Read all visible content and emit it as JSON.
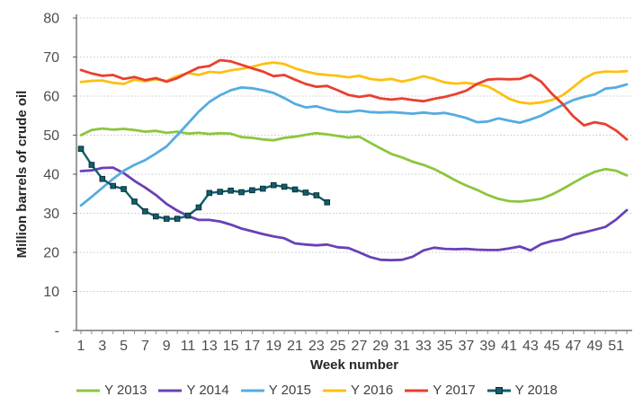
{
  "chart_data": {
    "type": "line",
    "title": "",
    "xlabel": "Week number",
    "ylabel": "Million barrels of crude oil",
    "grid": "horizontal",
    "legend_position": "bottom",
    "xlim": [
      1,
      52
    ],
    "ylim": [
      0,
      80
    ],
    "y_tick_values": [
      0,
      10,
      20,
      30,
      40,
      50,
      60,
      70,
      80
    ],
    "y_tick_labels": [
      "-",
      "10",
      "20",
      "30",
      "40",
      "50",
      "60",
      "70",
      "80"
    ],
    "x_tick_values": [
      1,
      3,
      5,
      7,
      9,
      11,
      13,
      15,
      17,
      19,
      21,
      23,
      25,
      27,
      29,
      31,
      33,
      35,
      37,
      39,
      41,
      43,
      45,
      47,
      49,
      51
    ],
    "x_tick_labels": [
      "1",
      "3",
      "5",
      "7",
      "9",
      "11",
      "13",
      "15",
      "17",
      "19",
      "21",
      "23",
      "25",
      "27",
      "29",
      "31",
      "33",
      "35",
      "37",
      "39",
      "41",
      "43",
      "45",
      "47",
      "49",
      "51"
    ],
    "series": [
      {
        "name": "Y 2013",
        "color": "#8cc63e",
        "marker": "none",
        "values": [
          50.0,
          51.3,
          51.7,
          51.4,
          51.6,
          51.3,
          50.9,
          51.1,
          50.6,
          50.9,
          50.4,
          50.6,
          50.3,
          50.5,
          50.4,
          49.5,
          49.3,
          48.9,
          48.7,
          49.3,
          49.6,
          50.1,
          50.5,
          50.2,
          49.8,
          49.4,
          49.6,
          48.1,
          46.6,
          45.2,
          44.3,
          43.2,
          42.4,
          41.3,
          39.9,
          38.4,
          37.1,
          36.0,
          34.7,
          33.7,
          33.1,
          33.0,
          33.3,
          33.7,
          34.8,
          36.2,
          37.8,
          39.3,
          40.6,
          41.3,
          40.9,
          39.7
        ]
      },
      {
        "name": "Y 2014",
        "color": "#6a40b8",
        "marker": "none",
        "values": [
          40.8,
          41.0,
          41.6,
          41.7,
          40.3,
          38.3,
          36.6,
          34.7,
          32.4,
          30.7,
          29.3,
          28.3,
          28.3,
          27.9,
          27.1,
          26.1,
          25.4,
          24.7,
          24.1,
          23.6,
          22.3,
          22.0,
          21.8,
          22.0,
          21.3,
          21.1,
          20.0,
          18.8,
          18.1,
          18.0,
          18.1,
          18.9,
          20.5,
          21.2,
          20.9,
          20.8,
          20.9,
          20.7,
          20.6,
          20.6,
          21.0,
          21.5,
          20.5,
          22.1,
          22.9,
          23.4,
          24.5,
          25.1,
          25.8,
          26.5,
          28.4,
          30.8
        ]
      },
      {
        "name": "Y 2015",
        "color": "#55acdf",
        "marker": "none",
        "values": [
          32.0,
          34.2,
          36.5,
          38.8,
          40.9,
          42.4,
          43.6,
          45.3,
          47.1,
          50.0,
          53.0,
          56.0,
          58.5,
          60.2,
          61.5,
          62.2,
          62.0,
          61.5,
          60.8,
          59.5,
          58.0,
          57.1,
          57.4,
          56.6,
          56.0,
          55.9,
          56.3,
          55.9,
          55.8,
          55.9,
          55.7,
          55.5,
          55.8,
          55.5,
          55.7,
          55.1,
          54.4,
          53.3,
          53.5,
          54.3,
          53.7,
          53.2,
          54.0,
          55.0,
          56.4,
          57.7,
          59.0,
          59.8,
          60.4,
          61.9,
          62.2,
          63.0
        ]
      },
      {
        "name": "Y 2016",
        "color": "#fdc012",
        "marker": "none",
        "values": [
          63.6,
          63.9,
          64.0,
          63.4,
          63.1,
          64.2,
          63.8,
          64.3,
          63.9,
          65.1,
          65.9,
          65.4,
          66.2,
          66.0,
          66.6,
          67.0,
          67.5,
          68.2,
          68.6,
          68.2,
          67.1,
          66.3,
          65.7,
          65.4,
          65.2,
          64.8,
          65.2,
          64.4,
          64.1,
          64.4,
          63.7,
          64.3,
          65.1,
          64.4,
          63.5,
          63.2,
          63.4,
          63.0,
          62.5,
          61.0,
          59.3,
          58.4,
          58.1,
          58.4,
          59.0,
          60.2,
          62.3,
          64.5,
          65.9,
          66.3,
          66.2,
          66.4
        ]
      },
      {
        "name": "Y 2017",
        "color": "#e8402f",
        "marker": "none",
        "values": [
          66.7,
          65.8,
          65.2,
          65.4,
          64.4,
          64.9,
          64.1,
          64.6,
          63.7,
          64.6,
          66.0,
          67.3,
          67.7,
          69.2,
          68.9,
          68.0,
          67.1,
          66.3,
          65.1,
          65.4,
          64.2,
          63.1,
          62.4,
          62.6,
          61.5,
          60.3,
          59.8,
          60.2,
          59.4,
          59.1,
          59.4,
          59.0,
          58.7,
          59.3,
          59.8,
          60.5,
          61.4,
          63.1,
          64.2,
          64.4,
          64.3,
          64.4,
          65.4,
          63.7,
          60.6,
          58.0,
          54.8,
          52.5,
          53.3,
          52.8,
          51.2,
          48.9
        ]
      },
      {
        "name": "Y 2018",
        "color": "#135e6b",
        "marker": "square",
        "values": [
          46.5,
          42.4,
          38.8,
          37.0,
          36.2,
          33.0,
          30.5,
          29.2,
          28.6,
          28.6,
          29.4,
          31.5,
          35.2,
          35.5,
          35.8,
          35.4,
          35.9,
          36.3,
          37.2,
          36.8,
          36.1,
          35.3,
          34.6,
          32.8
        ]
      }
    ],
    "style_colors": {
      "axis": "#595959",
      "minor_tick": "#8c8c8c",
      "gridline": "#c9c9c9",
      "tick_text": "#4d4d4d"
    }
  }
}
